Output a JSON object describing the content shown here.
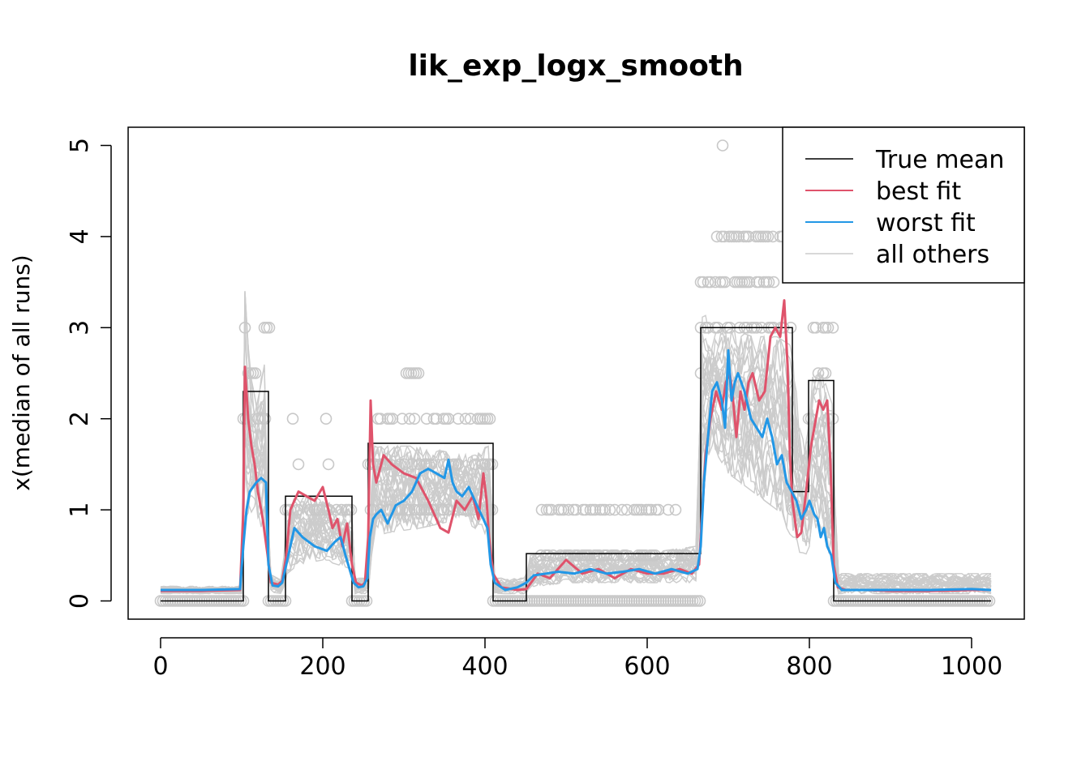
{
  "chart_data": {
    "type": "line",
    "title": "lik_exp_logx_smooth",
    "xlabel": "",
    "ylabel": "x(median of all runs)",
    "xlim": [
      -40,
      1065
    ],
    "ylim": [
      -0.2,
      5.2
    ],
    "x_ticks": [
      0,
      200,
      400,
      600,
      800,
      1000
    ],
    "y_ticks": [
      0,
      1,
      2,
      3,
      4,
      5
    ],
    "legend": {
      "position": "top-right",
      "entries": [
        {
          "label": "True mean",
          "color": "#000000"
        },
        {
          "label": "best fit",
          "color": "#DF536B"
        },
        {
          "label": "worst fit",
          "color": "#2297E6"
        },
        {
          "label": "all others",
          "color": "#CCCCCC"
        }
      ]
    },
    "true_mean": {
      "name": "True mean",
      "segments": [
        {
          "x0": 0,
          "x1": 102,
          "y": 0
        },
        {
          "x0": 102,
          "x1": 133,
          "y": 2.3
        },
        {
          "x0": 133,
          "x1": 154,
          "y": 0
        },
        {
          "x0": 154,
          "x1": 236,
          "y": 1.15
        },
        {
          "x0": 236,
          "x1": 256,
          "y": 0
        },
        {
          "x0": 256,
          "x1": 410,
          "y": 1.73
        },
        {
          "x0": 410,
          "x1": 451,
          "y": 0
        },
        {
          "x0": 451,
          "x1": 666,
          "y": 0.52
        },
        {
          "x0": 666,
          "x1": 779,
          "y": 3.0
        },
        {
          "x0": 779,
          "x1": 799,
          "y": 1.2
        },
        {
          "x0": 799,
          "x1": 830,
          "y": 2.42
        },
        {
          "x0": 830,
          "x1": 1024,
          "y": 0
        }
      ]
    },
    "best_fit": {
      "name": "best fit",
      "x": [
        0,
        50,
        98,
        102,
        104,
        108,
        112,
        116,
        120,
        126,
        132,
        136,
        145,
        150,
        155,
        160,
        170,
        180,
        190,
        200,
        207,
        212,
        218,
        224,
        230,
        236,
        241,
        248,
        252,
        256,
        259,
        262,
        266,
        275,
        285,
        300,
        315,
        330,
        340,
        345,
        355,
        365,
        375,
        385,
        392,
        398,
        402,
        405,
        410,
        420,
        440,
        451,
        465,
        480,
        500,
        520,
        540,
        560,
        580,
        600,
        620,
        640,
        655,
        664,
        668,
        672,
        678,
        685,
        692,
        697,
        702,
        706,
        710,
        715,
        720,
        725,
        730,
        738,
        745,
        752,
        758,
        764,
        769,
        773,
        776,
        779,
        782,
        785,
        790,
        796,
        802,
        808,
        812,
        817,
        822,
        826,
        830,
        835,
        845,
        870,
        900,
        950,
        1000,
        1024
      ],
      "y": [
        0.11,
        0.11,
        0.12,
        1.0,
        2.57,
        2.0,
        1.7,
        1.5,
        1.2,
        0.9,
        0.5,
        0.2,
        0.18,
        0.22,
        0.5,
        1.0,
        1.2,
        1.15,
        1.1,
        1.25,
        1.0,
        0.8,
        0.9,
        0.6,
        0.85,
        0.4,
        0.2,
        0.17,
        0.2,
        0.7,
        2.2,
        1.5,
        1.3,
        1.6,
        1.5,
        1.4,
        1.35,
        1.1,
        0.9,
        0.8,
        0.75,
        1.1,
        1.0,
        1.15,
        0.9,
        1.4,
        1.1,
        0.7,
        0.3,
        0.15,
        0.12,
        0.13,
        0.3,
        0.25,
        0.45,
        0.3,
        0.35,
        0.25,
        0.35,
        0.3,
        0.3,
        0.35,
        0.3,
        0.4,
        1.0,
        1.6,
        2.0,
        2.3,
        2.1,
        2.4,
        2.5,
        2.2,
        1.8,
        2.3,
        2.1,
        2.4,
        2.5,
        2.2,
        2.3,
        2.9,
        3.0,
        2.9,
        3.3,
        2.6,
        1.6,
        1.1,
        0.9,
        0.7,
        0.75,
        1.2,
        1.7,
        2.0,
        2.2,
        2.1,
        2.2,
        1.5,
        0.4,
        0.15,
        0.12,
        0.12,
        0.11,
        0.11,
        0.12,
        0.12
      ]
    },
    "worst_fit": {
      "name": "worst fit",
      "x": [
        0,
        50,
        98,
        102,
        106,
        110,
        114,
        118,
        124,
        130,
        133,
        138,
        145,
        150,
        155,
        160,
        165,
        175,
        190,
        205,
        215,
        222,
        228,
        233,
        238,
        244,
        250,
        255,
        258,
        262,
        266,
        272,
        280,
        290,
        300,
        310,
        320,
        330,
        340,
        350,
        355,
        360,
        365,
        372,
        380,
        390,
        398,
        403,
        407,
        412,
        425,
        440,
        451,
        460,
        475,
        490,
        510,
        530,
        550,
        570,
        590,
        610,
        630,
        650,
        662,
        666,
        670,
        675,
        680,
        686,
        692,
        696,
        700,
        704,
        708,
        712,
        720,
        728,
        735,
        742,
        748,
        754,
        760,
        766,
        772,
        778,
        784,
        790,
        796,
        800,
        806,
        810,
        814,
        818,
        822,
        827,
        832,
        840,
        860,
        900,
        950,
        1000,
        1024
      ],
      "y": [
        0.12,
        0.12,
        0.13,
        0.6,
        1.0,
        1.2,
        1.25,
        1.3,
        1.35,
        1.3,
        0.4,
        0.17,
        0.16,
        0.2,
        0.4,
        0.6,
        0.8,
        0.7,
        0.6,
        0.55,
        0.65,
        0.7,
        0.5,
        0.35,
        0.2,
        0.15,
        0.16,
        0.25,
        0.7,
        0.9,
        0.95,
        1.0,
        0.85,
        1.05,
        1.1,
        1.2,
        1.4,
        1.45,
        1.4,
        1.35,
        1.55,
        1.3,
        1.2,
        1.15,
        1.25,
        1.05,
        0.9,
        0.8,
        0.4,
        0.2,
        0.12,
        0.15,
        0.2,
        0.28,
        0.3,
        0.32,
        0.3,
        0.35,
        0.3,
        0.32,
        0.35,
        0.3,
        0.35,
        0.3,
        0.35,
        0.6,
        1.3,
        1.8,
        2.3,
        2.4,
        2.2,
        1.9,
        2.75,
        2.2,
        2.4,
        2.5,
        2.3,
        2.0,
        1.9,
        1.8,
        2.0,
        1.8,
        1.5,
        1.6,
        1.3,
        1.2,
        1.1,
        0.9,
        1.0,
        1.1,
        0.95,
        0.9,
        0.7,
        0.8,
        0.6,
        0.5,
        0.2,
        0.12,
        0.12,
        0.12,
        0.12,
        0.13,
        0.12
      ]
    },
    "others_band": {
      "name": "all others",
      "x": [
        0,
        100,
        104,
        110,
        118,
        128,
        134,
        150,
        156,
        170,
        200,
        236,
        240,
        256,
        262,
        280,
        320,
        370,
        405,
        412,
        450,
        456,
        500,
        560,
        620,
        660,
        668,
        680,
        700,
        730,
        760,
        778,
        790,
        798,
        804,
        815,
        828,
        835,
        1024
      ],
      "y_low": [
        0.08,
        0.08,
        0.9,
        1.0,
        0.9,
        0.7,
        0.1,
        0.08,
        0.3,
        0.4,
        0.45,
        0.35,
        0.08,
        0.08,
        0.7,
        0.75,
        0.8,
        0.9,
        0.7,
        0.08,
        0.08,
        0.15,
        0.2,
        0.2,
        0.2,
        0.2,
        1.2,
        1.7,
        1.4,
        1.2,
        1.0,
        0.7,
        0.5,
        0.5,
        0.8,
        0.8,
        0.4,
        0.08,
        0.08
      ],
      "y_high": [
        0.16,
        0.16,
        3.4,
        2.5,
        2.2,
        2.6,
        0.3,
        0.22,
        1.0,
        1.2,
        1.1,
        1.0,
        0.25,
        0.25,
        1.7,
        1.7,
        1.7,
        1.6,
        1.7,
        0.25,
        0.25,
        0.5,
        0.55,
        0.55,
        0.55,
        0.6,
        3.2,
        3.0,
        3.0,
        2.9,
        2.9,
        2.8,
        1.8,
        1.9,
        2.5,
        2.5,
        2.2,
        0.3,
        0.3
      ]
    },
    "circle_points": [
      {
        "x": 0,
        "x_end": 102,
        "y": 0
      },
      {
        "x": 102,
        "x_end": 133,
        "y": 2.0
      },
      {
        "x": 108,
        "x_end": 118,
        "y": 2.5
      },
      {
        "x": 104,
        "x_end": 104,
        "y": 3.0
      },
      {
        "x": 128,
        "x_end": 134,
        "y": 3.0
      },
      {
        "x": 133,
        "x_end": 154,
        "y": 0
      },
      {
        "x": 154,
        "x_end": 236,
        "y": 1.0
      },
      {
        "x": 170,
        "x_end": 170,
        "y": 1.5
      },
      {
        "x": 207,
        "x_end": 207,
        "y": 1.5
      },
      {
        "x": 163,
        "x_end": 163,
        "y": 2.0
      },
      {
        "x": 204,
        "x_end": 204,
        "y": 2.0
      },
      {
        "x": 236,
        "x_end": 256,
        "y": 0
      },
      {
        "x": 256,
        "x_end": 410,
        "y": 2.0
      },
      {
        "x": 256,
        "x_end": 410,
        "y": 1.0
      },
      {
        "x": 256,
        "x_end": 410,
        "y": 1.5
      },
      {
        "x": 303,
        "x_end": 319,
        "y": 2.5
      },
      {
        "x": 410,
        "x_end": 666,
        "y": 0
      },
      {
        "x": 470,
        "x_end": 640,
        "y": 1.0
      },
      {
        "x": 466,
        "x_end": 650,
        "y": 0.5
      },
      {
        "x": 666,
        "x_end": 779,
        "y": 3.0
      },
      {
        "x": 666,
        "x_end": 760,
        "y": 3.5
      },
      {
        "x": 680,
        "x_end": 770,
        "y": 4.0
      },
      {
        "x": 693,
        "x_end": 693,
        "y": 5.0
      },
      {
        "x": 666,
        "x_end": 666,
        "y": 2.5
      },
      {
        "x": 779,
        "x_end": 799,
        "y": 1.0
      },
      {
        "x": 799,
        "x_end": 830,
        "y": 2.0
      },
      {
        "x": 799,
        "x_end": 830,
        "y": 3.0
      },
      {
        "x": 799,
        "x_end": 820,
        "y": 2.5
      },
      {
        "x": 830,
        "x_end": 1024,
        "y": 0
      }
    ]
  }
}
